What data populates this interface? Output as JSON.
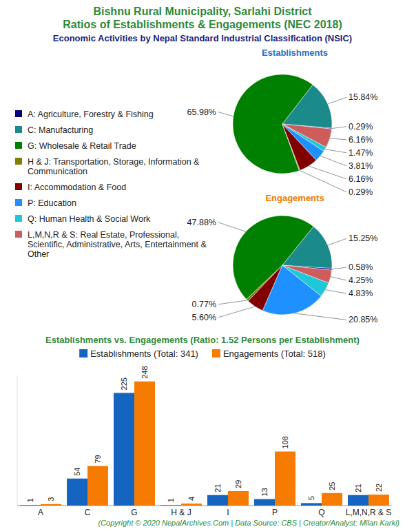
{
  "header": {
    "title": [
      "Bishnu Rural Municipality, Sarlahi District",
      "Ratios of Establishments & Engagements (NEC 2018)"
    ],
    "subtitle": "Economic Activities by Nepal Standard Industrial Classification (NSIC)"
  },
  "chart_data": [
    {
      "type": "pie",
      "title": "Establishments",
      "categories": [
        "A: Agriculture, Forestry & Fishing",
        "C: Manufacturing",
        "G: Wholesale & Retail Trade",
        "H & J: Transportation, Storage, Information & Communication",
        "I: Accommodation & Food",
        "P: Education",
        "Q: Human Health & Social Work",
        "L,M,N,R & S: Real Estate, Professional, Scientific, Administrative, Arts, Entertainment & Other"
      ],
      "values": [
        0.29,
        15.84,
        65.98,
        0.29,
        6.16,
        3.81,
        1.47,
        6.16
      ],
      "value_labels": [
        "0.29%",
        "15.84%",
        "65.98%",
        "0.29%",
        "6.16%",
        "3.81%",
        "1.47%",
        "6.16%"
      ],
      "colors": [
        "#000080",
        "#1a8a8a",
        "#008000",
        "#808000",
        "#800000",
        "#1e90ff",
        "#1ec8d8",
        "#cd5c5c"
      ],
      "legend": "left",
      "data_labels": true
    },
    {
      "type": "pie",
      "title": "Engagements",
      "values": [
        0.58,
        15.25,
        47.88,
        0.77,
        5.6,
        20.85,
        4.83,
        4.25
      ],
      "value_labels": [
        "0.58%",
        "15.25%",
        "47.88%",
        "0.77%",
        "5.60%",
        "20.85%",
        "4.83%",
        "4.25%"
      ],
      "colors": [
        "#000080",
        "#1a8a8a",
        "#008000",
        "#808000",
        "#800000",
        "#1e90ff",
        "#1ec8d8",
        "#cd5c5c"
      ],
      "data_labels": true
    },
    {
      "type": "bar",
      "title": "Establishments vs. Engagements (Ratio: 1.52 Persons per Establishment)",
      "categories": [
        "A",
        "C",
        "G",
        "H & J",
        "I",
        "P",
        "Q",
        "L,M,N,R & S"
      ],
      "series": [
        {
          "name": "Establishments (Total: 341)",
          "color": "#1565c0",
          "values": [
            1,
            54,
            225,
            1,
            21,
            13,
            5,
            21
          ]
        },
        {
          "name": "Engagements (Total: 518)",
          "color": "#f57c00",
          "values": [
            3,
            79,
            248,
            4,
            29,
            108,
            25,
            22
          ]
        }
      ],
      "ylim": [
        0,
        260
      ],
      "data_labels": true,
      "tick_labels": "x",
      "legend": "top"
    }
  ],
  "footer": "(Copyright © 2020 NepalArchives.Com | Data Source: CBS | Creator/Analyst: Milan Karki)"
}
